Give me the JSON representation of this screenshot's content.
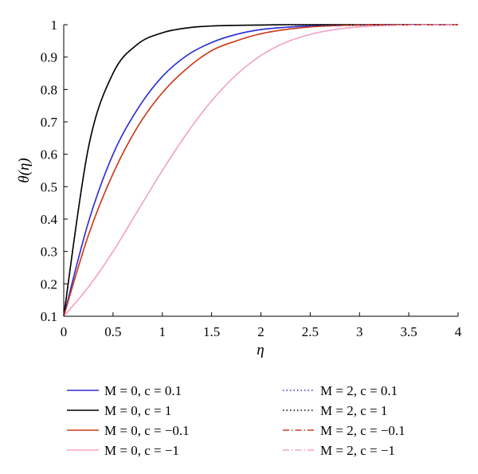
{
  "chart_data": {
    "type": "line",
    "xlabel": "η",
    "ylabel": "θ(η)",
    "xlim": [
      0,
      4
    ],
    "ylim": [
      0.1,
      1
    ],
    "xticks": [
      "0",
      "0.5",
      "1",
      "1.5",
      "2",
      "2.5",
      "3",
      "3.5",
      "4"
    ],
    "yticks": [
      "0.1",
      "0.2",
      "0.3",
      "0.4",
      "0.5",
      "0.6",
      "0.7",
      "0.8",
      "0.9",
      "1"
    ],
    "grid": false,
    "legend_position": "bottom",
    "x": [
      0,
      0.25,
      0.5,
      0.75,
      1.0,
      1.25,
      1.5,
      1.75,
      2.0,
      2.25,
      2.5,
      2.75,
      3.0,
      3.25,
      3.5,
      3.75,
      4.0
    ],
    "series": [
      {
        "name": "M = 0, c = 0.1",
        "color": "#2b2bd4",
        "dash": "solid",
        "values": [
          0.1,
          0.39,
          0.6,
          0.74,
          0.84,
          0.905,
          0.945,
          0.97,
          0.985,
          0.992,
          0.996,
          0.998,
          0.999,
          1.0,
          1.0,
          1.0,
          1.0
        ]
      },
      {
        "name": "M = 0, c = 1",
        "color": "#000000",
        "dash": "solid",
        "values": [
          0.1,
          0.62,
          0.85,
          0.94,
          0.975,
          0.99,
          0.996,
          0.998,
          0.999,
          1.0,
          1.0,
          1.0,
          1.0,
          1.0,
          1.0,
          1.0,
          1.0
        ]
      },
      {
        "name": "M = 0, c = −0.1",
        "color": "#cc3b1b",
        "dash": "solid",
        "values": [
          0.1,
          0.35,
          0.54,
          0.685,
          0.79,
          0.865,
          0.92,
          0.95,
          0.972,
          0.985,
          0.993,
          0.997,
          0.999,
          1.0,
          1.0,
          1.0,
          1.0
        ]
      },
      {
        "name": "M = 0, c = −1",
        "color": "#f2a3c6",
        "dash": "solid",
        "values": [
          0.1,
          0.19,
          0.3,
          0.425,
          0.55,
          0.665,
          0.765,
          0.845,
          0.905,
          0.945,
          0.97,
          0.985,
          0.993,
          0.997,
          0.999,
          1.0,
          1.0
        ]
      },
      {
        "name": "M = 2, c = 0.1",
        "color": "#2b2bd4",
        "dash": "dot",
        "values": [
          0.1,
          0.39,
          0.6,
          0.74,
          0.84,
          0.905,
          0.945,
          0.97,
          0.985,
          0.992,
          0.996,
          0.998,
          0.999,
          1.0,
          1.0,
          1.0,
          1.0
        ]
      },
      {
        "name": "M = 2, c = 1",
        "color": "#000000",
        "dash": "dot",
        "values": [
          0.1,
          0.62,
          0.85,
          0.94,
          0.975,
          0.99,
          0.996,
          0.998,
          0.999,
          1.0,
          1.0,
          1.0,
          1.0,
          1.0,
          1.0,
          1.0,
          1.0
        ]
      },
      {
        "name": "M = 2, c = −0.1",
        "color": "#cc3b1b",
        "dash": "dashdot",
        "values": [
          0.1,
          0.35,
          0.54,
          0.685,
          0.79,
          0.865,
          0.92,
          0.95,
          0.972,
          0.985,
          0.993,
          0.997,
          0.999,
          1.0,
          1.0,
          1.0,
          1.0
        ]
      },
      {
        "name": "M = 2, c = −1",
        "color": "#f2a3c6",
        "dash": "dashdot",
        "values": [
          0.1,
          0.19,
          0.3,
          0.425,
          0.55,
          0.665,
          0.765,
          0.845,
          0.905,
          0.945,
          0.97,
          0.985,
          0.993,
          0.997,
          0.999,
          1.0,
          1.0
        ]
      }
    ]
  }
}
